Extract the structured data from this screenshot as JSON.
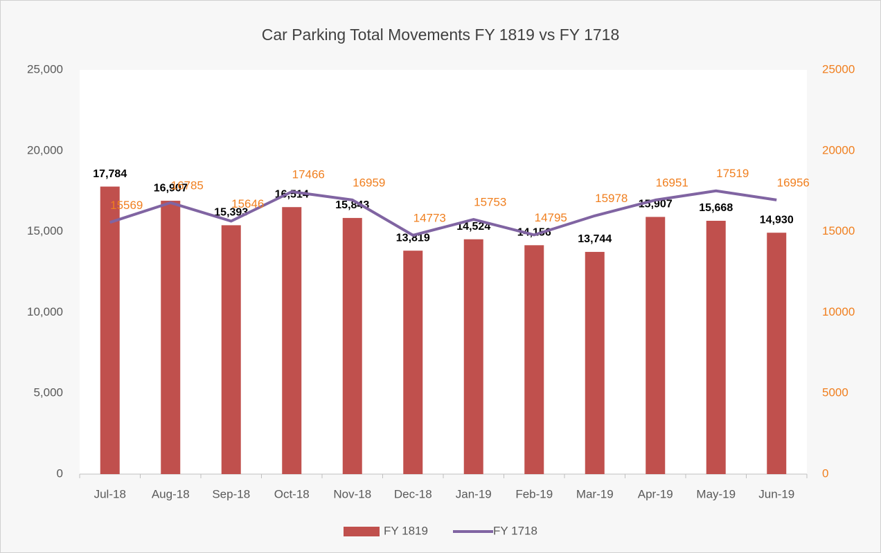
{
  "chart_data": {
    "type": "bar",
    "title": "Car Parking Total Movements FY 1819 vs FY 1718",
    "categories": [
      "Jul-18",
      "Aug-18",
      "Sep-18",
      "Oct-18",
      "Nov-18",
      "Dec-18",
      "Jan-19",
      "Feb-19",
      "Mar-19",
      "Apr-19",
      "May-19",
      "Jun-19"
    ],
    "series": [
      {
        "name": "FY 1819",
        "type": "bar",
        "color": "#c0504d",
        "values": [
          17784,
          16907,
          15393,
          16514,
          15843,
          13819,
          14524,
          14156,
          13744,
          15907,
          15668,
          14930
        ],
        "value_labels": [
          "17,784",
          "16,907",
          "15,393",
          "16,514",
          "15,843",
          "13,819",
          "14,524",
          "14,156",
          "13,744",
          "15,907",
          "15,668",
          "14,930"
        ]
      },
      {
        "name": "FY 1718",
        "type": "line",
        "axis": "y2",
        "color": "#8064a2",
        "values": [
          15569,
          16785,
          15646,
          17466,
          16959,
          14773,
          15753,
          14795,
          15978,
          16951,
          17519,
          16956
        ]
      }
    ],
    "ylim": [
      0,
      25000
    ],
    "yticks": [
      0,
      {
        "value": 5000,
        "label": "5,000"
      },
      {
        "value": 10000,
        "label": "10,000"
      },
      {
        "value": 15000,
        "label": "15,000"
      },
      {
        "value": 20000,
        "label": "20,000"
      },
      {
        "value": 25000,
        "label": "25,000"
      }
    ],
    "y2lim": [
      0,
      25000
    ],
    "y2ticks": [
      0,
      5000,
      10000,
      15000,
      20000,
      25000
    ],
    "y2_color": "#f07f1f",
    "grid": false,
    "legend": "bottom"
  }
}
